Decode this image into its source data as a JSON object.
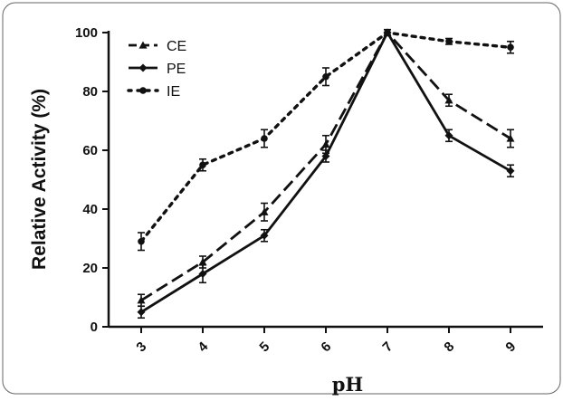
{
  "chart_data": {
    "type": "line",
    "title": "",
    "xlabel": "pH",
    "ylabel": "Relative Activity (%)",
    "categories": [
      "3",
      "4",
      "5",
      "6",
      "7",
      "8",
      "9"
    ],
    "x": [
      3,
      4,
      5,
      6,
      7,
      8,
      9
    ],
    "ylim": [
      0,
      100
    ],
    "yticks": [
      "0",
      "20",
      "40",
      "60",
      "80",
      "100"
    ],
    "grid": false,
    "legend_position": "top-left",
    "series": [
      {
        "name": "CE",
        "style": "dashed",
        "marker": "triangle",
        "values": [
          9,
          22,
          39,
          62,
          100,
          77,
          64
        ],
        "errors": [
          2,
          2,
          3,
          3,
          1,
          2,
          3
        ]
      },
      {
        "name": "PE",
        "style": "solid",
        "marker": "diamond",
        "values": [
          5,
          18,
          31,
          58,
          100,
          65,
          53
        ],
        "errors": [
          2,
          3,
          2,
          2,
          1,
          2,
          2
        ]
      },
      {
        "name": "IE",
        "style": "dotted",
        "marker": "circle",
        "values": [
          29,
          55,
          64,
          85,
          100,
          97,
          95
        ],
        "errors": [
          3,
          2,
          3,
          3,
          1,
          1,
          2
        ]
      }
    ]
  }
}
